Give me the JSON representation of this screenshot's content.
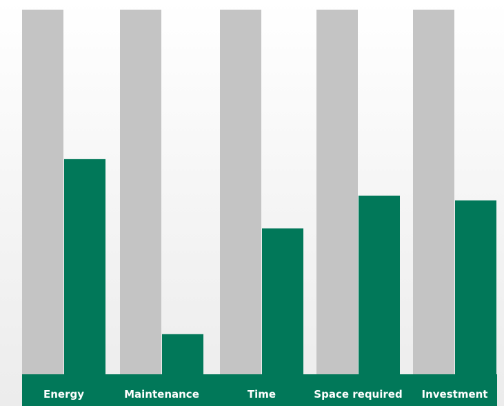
{
  "chart_data": {
    "type": "bar",
    "categories": [
      "Energy",
      "Maintenance",
      "Time",
      "Space required",
      "Investment"
    ],
    "series": [
      {
        "values": [
          100,
          100,
          100,
          100,
          100
        ],
        "color": "#c4c4c4"
      },
      {
        "values": [
          59,
          11,
          40,
          49,
          47.7
        ],
        "color": "#017859"
      }
    ],
    "title": "",
    "xlabel": "",
    "ylabel": "",
    "ylim": [
      0,
      100
    ],
    "grid": false,
    "legend": "none",
    "axis_band_color": "#017859",
    "label_color": "#ffffff"
  }
}
